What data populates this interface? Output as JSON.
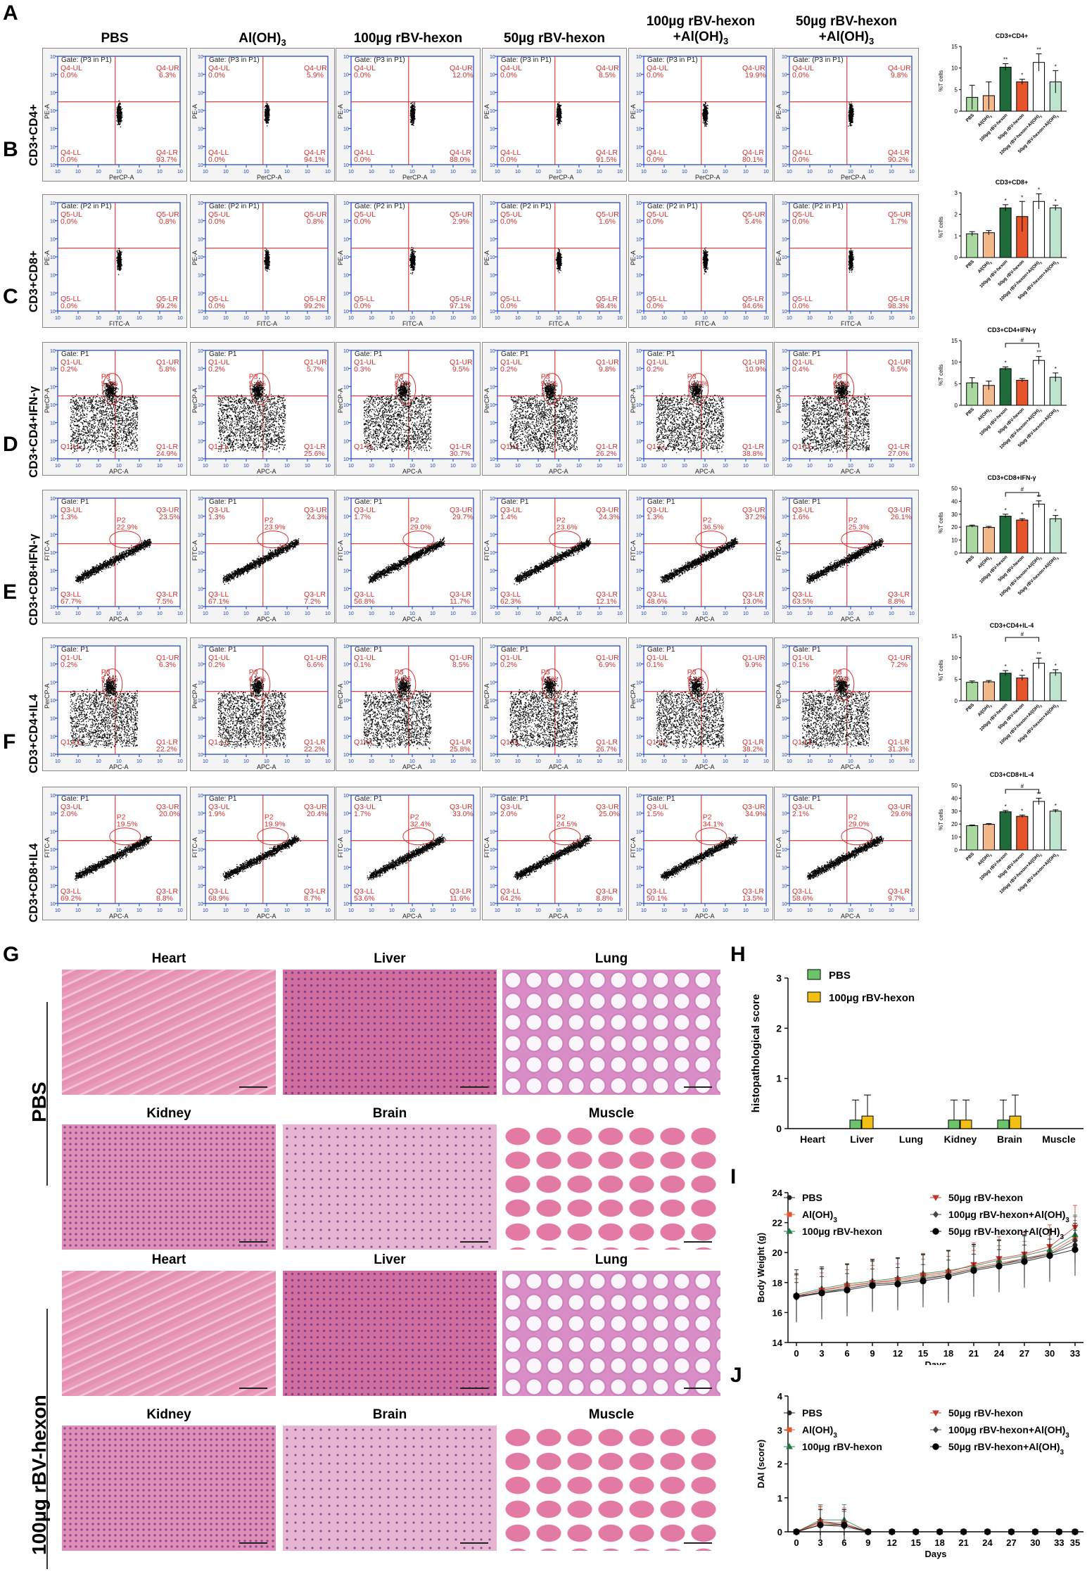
{
  "panel_letters": [
    "A",
    "B",
    "C",
    "D",
    "E",
    "F",
    "G",
    "H",
    "I",
    "J"
  ],
  "column_headers": [
    "PBS",
    "Al(OH)3",
    "100µg rBV-hexon",
    "50µg rBV-hexon",
    "100µg rBV-hexon\n+Al(OH)3",
    "50µg rBV-hexon\n+Al(OH)3"
  ],
  "rows": [
    {
      "label": "CD3+CD4+",
      "gate": "Gate: (P3 in P1)",
      "xaxis": "PerCP-A",
      "yaxis": "PE-A",
      "q": "Q4",
      "type": "single",
      "ul": [
        "0.0%",
        "0.0%",
        "0.0%",
        "0.0%",
        "0.0%",
        "0.0%"
      ],
      "ur": [
        "6.3%",
        "5.9%",
        "12.0%",
        "8.5%",
        "19.9%",
        "9.8%"
      ],
      "ll": [
        "0.0%",
        "0.0%",
        "0.0%",
        "0.0%",
        "0.0%",
        "0.0%"
      ],
      "lr": [
        "93.7%",
        "94.1%",
        "88.0%",
        "91.5%",
        "80.1%",
        "90.2%"
      ]
    },
    {
      "label": "CD3+CD8+",
      "gate": "Gate: (P2 in P1)",
      "xaxis": "FITC-A",
      "yaxis": "PE-A",
      "q": "Q5",
      "type": "single",
      "ul": [
        "0.0%",
        "0.0%",
        "0.0%",
        "0.0%",
        "0.0%",
        "0.0%"
      ],
      "ur": [
        "0.8%",
        "0.8%",
        "2.9%",
        "1.6%",
        "5.4%",
        "1.7%"
      ],
      "ll": [
        "0.0%",
        "0.0%",
        "0.0%",
        "0.0%",
        "0.0%",
        "0.0%"
      ],
      "lr": [
        "99.2%",
        "99.2%",
        "97.1%",
        "98.4%",
        "94.6%",
        "98.3%"
      ]
    },
    {
      "label": "CD3+CD4+IFN-γ",
      "gate": "Gate: P1",
      "xaxis": "APC-A",
      "yaxis": "PerCP-A",
      "q": "Q1",
      "type": "cloud",
      "p": "P3",
      "ul": [
        "0.2%",
        "0.2%",
        "0.3%",
        "0.2%",
        "0.2%",
        "0.4%"
      ],
      "ur": [
        "5.8%",
        "5.7%",
        "9.5%",
        "9.8%",
        "10.9%",
        "6.5%"
      ],
      "pv": [
        "5.4%",
        "5.4%",
        "8.8%",
        "9.2%",
        "10.0%",
        "6.0%"
      ],
      "ll": [
        "",
        "",
        "",
        "",
        "",
        ""
      ],
      "lr": [
        "24.9%",
        "25.6%",
        "30.7%",
        "26.2%",
        "38.8%",
        "27.0%"
      ]
    },
    {
      "label": "CD3+CD8+IFN-γ",
      "gate": "Gate: P1",
      "xaxis": "APC-A",
      "yaxis": "FITC-A",
      "q": "Q3",
      "type": "diag",
      "p": "P2",
      "ul": [
        "1.3%",
        "1.3%",
        "1.7%",
        "1.4%",
        "1.3%",
        "1.6%"
      ],
      "ur": [
        "23.5%",
        "24.3%",
        "29.7%",
        "24.3%",
        "37.2%",
        "26.1%"
      ],
      "pv": [
        "22.9%",
        "23.9%",
        "29.0%",
        "23.6%",
        "36.5%",
        "25.3%"
      ],
      "ll": [
        "67.7%",
        "67.1%",
        "56.8%",
        "62.3%",
        "48.6%",
        "63.5%"
      ],
      "lr": [
        "7.5%",
        "7.2%",
        "11.7%",
        "12.1%",
        "13.0%",
        "8.8%"
      ]
    },
    {
      "label": "CD3+CD4+IL4",
      "gate": "Gate: P1",
      "xaxis": "APC-A",
      "yaxis": "PerCP-A",
      "q": "Q1",
      "type": "cloud",
      "p": "P3",
      "ul": [
        "0.2%",
        "0.2%",
        "0.1%",
        "0.2%",
        "0.1%",
        "0.1%"
      ],
      "ur": [
        "6.3%",
        "6.6%",
        "8.5%",
        "6.9%",
        "9.9%",
        "7.2%"
      ],
      "pv": [
        "5.9%",
        "6.2%",
        "8.0%",
        "6.5%",
        "9.3%",
        "6.8%"
      ],
      "ll": [
        "",
        "",
        "",
        "",
        "",
        ""
      ],
      "lr": [
        "22.2%",
        "22.2%",
        "25.8%",
        "26.7%",
        "38.2%",
        "31.3%"
      ]
    },
    {
      "label": "CD3+CD8+IL4",
      "gate": "Gate: P1",
      "xaxis": "APC-A",
      "yaxis": "FITC-A",
      "q": "Q3",
      "type": "diag",
      "p": "P2",
      "ul": [
        "2.0%",
        "1.9%",
        "1.7%",
        "2.0%",
        "1.5%",
        "2.1%"
      ],
      "ur": [
        "20.0%",
        "20.4%",
        "33.0%",
        "25.0%",
        "34.9%",
        "29.6%"
      ],
      "pv": [
        "19.5%",
        "19.9%",
        "32.4%",
        "24.5%",
        "34.1%",
        "29.0%"
      ],
      "ll": [
        "69.2%",
        "68.9%",
        "53.6%",
        "64.2%",
        "50.1%",
        "58.6%"
      ],
      "lr": [
        "8.8%",
        "8.7%",
        "11.6%",
        "8.8%",
        "13.5%",
        "9.7%"
      ]
    }
  ],
  "bar_charts": [
    {
      "title": "CD3+CD4+",
      "ylabel": "%T cells",
      "ylim": [
        0,
        15
      ],
      "ticks": [
        "0",
        "5",
        "10",
        "15"
      ],
      "values": [
        3.2,
        3.6,
        10.2,
        6.8,
        11.3,
        6.8
      ],
      "errors": [
        2.8,
        3.2,
        0.8,
        0.6,
        2.0,
        2.6
      ],
      "sig": [
        "",
        "",
        "**",
        "*",
        "**",
        "*"
      ],
      "bracket": ""
    },
    {
      "title": "CD3+CD8+",
      "ylabel": "%T cells",
      "ylim": [
        0,
        3
      ],
      "ticks": [
        "0",
        "1",
        "2",
        "3"
      ],
      "values": [
        1.1,
        1.15,
        2.3,
        1.9,
        2.6,
        2.3
      ],
      "errors": [
        0.1,
        0.1,
        0.15,
        0.7,
        0.35,
        0.12
      ],
      "sig": [
        "",
        "",
        "*",
        "*",
        "*",
        "*"
      ],
      "bracket": ""
    },
    {
      "title": "CD3+CD4+IFN-γ",
      "ylabel": "%T cells",
      "ylim": [
        0,
        15
      ],
      "ticks": [
        "0",
        "5",
        "10",
        "15"
      ],
      "values": [
        5.2,
        4.6,
        8.5,
        5.8,
        10.4,
        6.5
      ],
      "errors": [
        1.2,
        1.0,
        0.4,
        0.4,
        0.9,
        1.0
      ],
      "sig": [
        "",
        "",
        "*",
        "",
        "**",
        "*"
      ],
      "bracket": "#"
    },
    {
      "title": "CD3+CD8+IFN-γ",
      "ylabel": "%T cells",
      "ylim": [
        0,
        50
      ],
      "ticks": [
        "0",
        "10",
        "20",
        "30",
        "40",
        "50"
      ],
      "values": [
        20.8,
        19.8,
        28.5,
        25.5,
        37.8,
        26.5
      ],
      "errors": [
        0.8,
        0.8,
        1.5,
        1.0,
        2.5,
        2.5
      ],
      "sig": [
        "",
        "",
        "*",
        "*",
        "**",
        "*"
      ],
      "bracket": "#"
    },
    {
      "title": "CD3+CD4+IL-4",
      "ylabel": "%T cells",
      "ylim": [
        0,
        15
      ],
      "ticks": [
        "0",
        "5",
        "10",
        "15"
      ],
      "values": [
        4.3,
        4.4,
        6.4,
        5.3,
        8.7,
        6.5
      ],
      "errors": [
        0.3,
        0.3,
        0.6,
        0.6,
        1.2,
        0.7
      ],
      "sig": [
        "",
        "",
        "*",
        "*",
        "**",
        "*"
      ],
      "bracket": "#"
    },
    {
      "title": "CD3+CD8+IL-4",
      "ylabel": "%T cells",
      "ylim": [
        0,
        50
      ],
      "ticks": [
        "0",
        "10",
        "20",
        "30",
        "40",
        "50"
      ],
      "values": [
        18.8,
        19.8,
        29.5,
        26.0,
        37.5,
        30.0
      ],
      "errors": [
        0.5,
        0.6,
        1.0,
        1.0,
        2.5,
        1.0
      ],
      "sig": [
        "",
        "",
        "*",
        "*",
        "**",
        "*"
      ],
      "bracket": "#"
    }
  ],
  "bar_categories": [
    "PBS",
    "Al(OH)3",
    "100µg rBV-hexon",
    "50µg rBV-hexon",
    "100µg rBV-hexon+Al(OH)3",
    "50µg rBV-hexon+Al(OH)3"
  ],
  "bar_colors": [
    "#a9d8a0",
    "#f3b88a",
    "#1f6b3a",
    "#e8542a",
    "#ffffff",
    "#bfe4cf"
  ],
  "histology": {
    "vertical_labels": [
      "PBS",
      "100µg rBV-hexon"
    ],
    "tissues": [
      "Heart",
      "Liver",
      "Lung",
      "Kidney",
      "Brain",
      "Muscle"
    ]
  },
  "chart_data": [
    {
      "type": "bar",
      "title": "",
      "xlabel": "",
      "ylabel": "histopathological score",
      "ylim": [
        0,
        3
      ],
      "categories": [
        "Heart",
        "Liver",
        "Lung",
        "Kidney",
        "Brain",
        "Muscle"
      ],
      "series": [
        {
          "name": "PBS",
          "values": [
            0,
            0.17,
            0,
            0.17,
            0.17,
            0
          ],
          "errors": [
            0,
            0.4,
            0,
            0.4,
            0.4,
            0
          ]
        },
        {
          "name": "100µg rBV-hexon",
          "values": [
            0,
            0.25,
            0,
            0.17,
            0.25,
            0
          ],
          "errors": [
            0,
            0.42,
            0,
            0.4,
            0.42,
            0
          ]
        }
      ],
      "legend": "top-left",
      "colors": [
        "#6cc46a",
        "#f2c014"
      ],
      "ticks": [
        "0",
        "1",
        "2",
        "3"
      ]
    },
    {
      "type": "line",
      "title": "",
      "xlabel": "Days",
      "ylabel": "Body Weight (g)",
      "ylim": [
        14,
        24
      ],
      "x": [
        0,
        3,
        6,
        9,
        12,
        15,
        18,
        21,
        24,
        27,
        30,
        33
      ],
      "xticks": [
        "0",
        "3",
        "6",
        "9",
        "12",
        "15",
        "18",
        "21",
        "24",
        "27",
        "30",
        "33"
      ],
      "yticks": [
        "14",
        "16",
        "18",
        "20",
        "22",
        "24"
      ],
      "series": [
        {
          "name": "PBS",
          "values": [
            17.0,
            17.4,
            17.6,
            17.9,
            18.0,
            18.2,
            18.5,
            18.9,
            19.2,
            19.5,
            19.9,
            20.5
          ]
        },
        {
          "name": "Al(OH)3",
          "values": [
            17.1,
            17.5,
            17.7,
            18.0,
            18.1,
            18.4,
            18.6,
            19.0,
            19.3,
            19.6,
            20.0,
            21.0
          ]
        },
        {
          "name": "100µg rBV-hexon",
          "values": [
            17.2,
            17.6,
            17.9,
            18.1,
            18.3,
            18.6,
            18.8,
            19.1,
            19.5,
            19.8,
            20.2,
            21.2
          ]
        },
        {
          "name": "50µg rBV-hexon",
          "values": [
            17.1,
            17.5,
            17.8,
            18.0,
            18.2,
            18.5,
            18.7,
            19.2,
            19.6,
            19.9,
            20.4,
            21.7
          ]
        },
        {
          "name": "100µg rBV-hexon+Al(OH)3",
          "values": [
            17.0,
            17.3,
            17.6,
            17.9,
            18.0,
            18.3,
            18.5,
            18.9,
            19.2,
            19.6,
            19.9,
            20.8
          ]
        },
        {
          "name": "50µg rBV-hexon+Al(OH)3",
          "values": [
            17.1,
            17.3,
            17.5,
            17.8,
            17.9,
            18.1,
            18.4,
            18.8,
            19.1,
            19.4,
            19.8,
            20.2
          ]
        }
      ],
      "legend": "top"
    },
    {
      "type": "line",
      "title": "",
      "xlabel": "Days",
      "ylabel": "DAI (score)",
      "ylim": [
        0,
        4
      ],
      "x": [
        0,
        3,
        6,
        9,
        12,
        15,
        18,
        21,
        24,
        27,
        30,
        33,
        35
      ],
      "xticks": [
        "0",
        "3",
        "6",
        "9",
        "12",
        "15",
        "18",
        "21",
        "24",
        "27",
        "30",
        "33",
        "35"
      ],
      "yticks": [
        "0",
        "1",
        "2",
        "3",
        "4"
      ],
      "series": [
        {
          "name": "PBS",
          "values": [
            0,
            0.3,
            0.2,
            0,
            0,
            0,
            0,
            0,
            0,
            0,
            0,
            0,
            0
          ]
        },
        {
          "name": "Al(OH)3",
          "values": [
            0,
            0.25,
            0.2,
            0,
            0,
            0,
            0,
            0,
            0,
            0,
            0,
            0,
            0
          ]
        },
        {
          "name": "100µg rBV-hexon",
          "values": [
            0,
            0.35,
            0.35,
            0,
            0,
            0,
            0,
            0,
            0,
            0,
            0,
            0,
            0
          ]
        },
        {
          "name": "50µg rBV-hexon",
          "values": [
            0,
            0.3,
            0.25,
            0,
            0,
            0,
            0,
            0,
            0,
            0,
            0,
            0,
            0
          ]
        },
        {
          "name": "100µg rBV-hexon+Al(OH)3",
          "values": [
            0,
            0.2,
            0.15,
            0,
            0,
            0,
            0,
            0,
            0,
            0,
            0,
            0,
            0
          ]
        },
        {
          "name": "50µg rBV-hexon+Al(OH)3",
          "values": [
            0,
            0.2,
            0.2,
            0,
            0,
            0,
            0,
            0,
            0,
            0,
            0,
            0,
            0
          ]
        }
      ],
      "legend": "top"
    }
  ],
  "line_colors": [
    "#222222",
    "#e0562d",
    "#1f7a43",
    "#c0392b",
    "#444444",
    "#000000"
  ],
  "line_markers": [
    "circle",
    "square",
    "triangle",
    "triangle-down",
    "diamond",
    "circle-big"
  ]
}
